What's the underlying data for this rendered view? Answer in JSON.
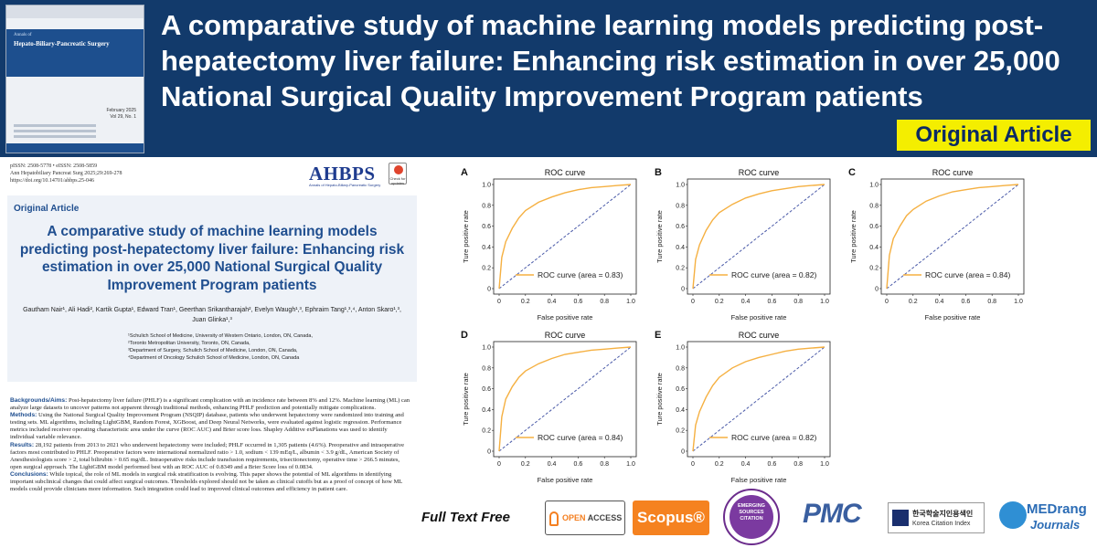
{
  "banner": {
    "title": "A comparative study of machine learning models predicting post-hepatectomy liver failure: Enhancing risk estimation in over 25,000 National Surgical Quality Improvement Program patients",
    "badge": "Original Article"
  },
  "cover": {
    "series": "Annals of",
    "journal": "Hepato-Biliary-Pancreatic Surgery",
    "date": "February 2025",
    "volume": "Vol 29, No. 1"
  },
  "paper": {
    "meta_lines": [
      "pISSN: 2508-5778 • eISSN: 2508-5859",
      "Ann Hepatobiliary Pancreat Surg 2025;29:269-278",
      "https://doi.org/10.14701/ahbps.25-046"
    ],
    "logo": "AHBPS",
    "logo_sub": "Annals of Hepato-Biliary-Pancreatic Surgery",
    "check_badge": "Check for updates",
    "article_type": "Original Article",
    "title": "A comparative study of machine learning models predicting post-hepatectomy liver failure: Enhancing risk estimation in over 25,000 National Surgical Quality Improvement Program patients",
    "authors": "Gautham Nair¹, Ali Hadi², Kartik Gupta¹, Edward Tran¹, Geerthan Srikantharajah², Evelyn Waugh¹,³, Ephraim Tang¹,³,⁴, Anton Skaro¹,³, Juan Glinka¹,³",
    "affiliations": [
      "¹Schulich School of Medicine, University of Western Ontario, London, ON, Canada,",
      "²Toronto Metropolitan University, Toronto, ON, Canada,",
      "³Department of Surgery, Schulich School of Medicine, London, ON, Canada,",
      "⁴Department of Oncology Schulich School of Medicine, London, ON, Canada"
    ],
    "abstract": {
      "bg_head": "Backgrounds/Aims:",
      "bg_text": " Post-hepatectomy liver failure (PHLF) is a significant complication with an incidence rate between 8% and 12%. Machine learning (ML) can analyze large datasets to uncover patterns not apparent through traditional methods, enhancing PHLF prediction and potentially mitigate complications.",
      "methods_head": "Methods:",
      "methods_text": " Using the National Surgical Quality Improvement Program (NSQIP) database, patients who underwent hepatectomy were randomized into training and testing sets. ML algorithms, including LightGBM, Random Forest, XGBoost, and Deep Neural Networks, were evaluated against logistic regression. Performance metrics included receiver operating characteristic area under the curve (ROC AUC) and Brier score loss. Shapley Additive exPlanations was used to identify individual variable relevance.",
      "results_head": "Results:",
      "results_text": " 28,192 patients from 2013 to 2021 who underwent hepatectomy were included; PHLF occurred in 1,305 patients (4.6%). Preoperative and intraoperative factors most contributed to PHLF. Preoperative factors were international normalized ratio > 1.0, sodium < 139 mEq/L, albumin < 3.9 g/dL, American Society of Anesthesiologists score > 2, total bilirubin > 0.65 mg/dL. Intraoperative risks include transfusion requirements, trisectionectomy, operative time > 266.5 minutes, open surgical approach. The LightGBM model performed best with an ROC AUC of 0.8349 and a Brier Score loss of 0.0834.",
      "conclusions_head": "Conclusions:",
      "conclusions_text": " While topical, the role of ML models in surgical risk stratification is evolving. This paper shows the potential of ML algorithms in identifying important subclinical changes that could affect surgical outcomes. Thresholds explored should not be taken as clinical cutoffs but as a proof of concept of how ML models could provide clinicians more information. Such integration could lead to improved clinical outcomes and efficiency in patient care."
    }
  },
  "chart_data": [
    {
      "type": "line",
      "panel": "A",
      "title": "ROC curve",
      "xlabel": "False positive rate",
      "ylabel": "Ture positive rate",
      "xlim": [
        0,
        1
      ],
      "ylim": [
        0,
        1
      ],
      "ticks": [
        "0",
        "0.2",
        "0.4",
        "0.6",
        "0.8",
        "1.0"
      ],
      "legend": "ROC curve (area = 0.83)",
      "legend_position": "bottom-right",
      "series": [
        {
          "name": "ROC curve (area = 0.83)",
          "x": [
            0,
            0.02,
            0.05,
            0.1,
            0.15,
            0.2,
            0.3,
            0.4,
            0.5,
            0.6,
            0.7,
            0.8,
            0.9,
            1.0
          ],
          "y": [
            0,
            0.3,
            0.45,
            0.58,
            0.68,
            0.75,
            0.83,
            0.88,
            0.92,
            0.95,
            0.97,
            0.98,
            0.99,
            1.0
          ]
        },
        {
          "name": "",
          "x": [
            0,
            1
          ],
          "y": [
            0,
            1
          ]
        }
      ]
    },
    {
      "type": "line",
      "panel": "B",
      "title": "ROC curve",
      "xlabel": "False positive rate",
      "ylabel": "Ture positive rate",
      "xlim": [
        0,
        1
      ],
      "ylim": [
        0,
        1
      ],
      "ticks": [
        "0",
        "0.2",
        "0.4",
        "0.6",
        "0.8",
        "1.0"
      ],
      "legend": "ROC curve (area = 0.82)",
      "legend_position": "bottom-right",
      "series": [
        {
          "name": "ROC curve (area = 0.82)",
          "x": [
            0,
            0.02,
            0.05,
            0.1,
            0.15,
            0.2,
            0.3,
            0.4,
            0.5,
            0.6,
            0.7,
            0.8,
            0.9,
            1.0
          ],
          "y": [
            0,
            0.28,
            0.42,
            0.56,
            0.66,
            0.73,
            0.81,
            0.87,
            0.91,
            0.94,
            0.96,
            0.98,
            0.99,
            1.0
          ]
        },
        {
          "name": "",
          "x": [
            0,
            1
          ],
          "y": [
            0,
            1
          ]
        }
      ]
    },
    {
      "type": "line",
      "panel": "C",
      "title": "ROC curve",
      "xlabel": "False positive rate",
      "ylabel": "Ture positive rate",
      "xlim": [
        0,
        1
      ],
      "ylim": [
        0,
        1
      ],
      "ticks": [
        "0",
        "0.2",
        "0.4",
        "0.6",
        "0.8",
        "1.0"
      ],
      "legend": "ROC curve (area = 0.84)",
      "legend_position": "bottom-right",
      "series": [
        {
          "name": "ROC curve (area = 0.84)",
          "x": [
            0,
            0.02,
            0.05,
            0.1,
            0.15,
            0.2,
            0.3,
            0.4,
            0.5,
            0.6,
            0.7,
            0.8,
            0.9,
            1.0
          ],
          "y": [
            0,
            0.32,
            0.48,
            0.6,
            0.7,
            0.76,
            0.84,
            0.89,
            0.93,
            0.95,
            0.97,
            0.98,
            0.99,
            1.0
          ]
        },
        {
          "name": "",
          "x": [
            0,
            1
          ],
          "y": [
            0,
            1
          ]
        }
      ]
    },
    {
      "type": "line",
      "panel": "D",
      "title": "ROC curve",
      "xlabel": "False positive rate",
      "ylabel": "Ture positive rate",
      "xlim": [
        0,
        1
      ],
      "ylim": [
        0,
        1
      ],
      "ticks": [
        "0",
        "0.2",
        "0.4",
        "0.6",
        "0.8",
        "1.0"
      ],
      "legend": "ROC curve (area = 0.84)",
      "legend_position": "bottom-right",
      "series": [
        {
          "name": "ROC curve (area = 0.84)",
          "x": [
            0,
            0.02,
            0.05,
            0.1,
            0.15,
            0.2,
            0.3,
            0.4,
            0.5,
            0.6,
            0.7,
            0.8,
            0.9,
            1.0
          ],
          "y": [
            0,
            0.33,
            0.5,
            0.62,
            0.71,
            0.77,
            0.84,
            0.89,
            0.93,
            0.95,
            0.97,
            0.98,
            0.99,
            1.0
          ]
        },
        {
          "name": "",
          "x": [
            0,
            1
          ],
          "y": [
            0,
            1
          ]
        }
      ]
    },
    {
      "type": "line",
      "panel": "E",
      "title": "ROC curve",
      "xlabel": "False positive rate",
      "ylabel": "Ture positive rate",
      "xlim": [
        0,
        1
      ],
      "ylim": [
        0,
        1
      ],
      "ticks": [
        "0",
        "0.2",
        "0.4",
        "0.6",
        "0.8",
        "1.0"
      ],
      "legend": "ROC curve (area = 0.82)",
      "legend_position": "bottom-right",
      "series": [
        {
          "name": "ROC curve (area = 0.82)",
          "x": [
            0,
            0.02,
            0.05,
            0.1,
            0.15,
            0.2,
            0.3,
            0.4,
            0.5,
            0.6,
            0.7,
            0.8,
            0.9,
            1.0
          ],
          "y": [
            0,
            0.25,
            0.38,
            0.52,
            0.63,
            0.71,
            0.8,
            0.86,
            0.9,
            0.93,
            0.96,
            0.98,
            0.99,
            1.0
          ]
        },
        {
          "name": "",
          "x": [
            0,
            1
          ],
          "y": [
            0,
            1
          ]
        }
      ]
    }
  ],
  "colors": {
    "roc_curve": "#f5b041",
    "diagonal": "#4a5aa8",
    "banner": "#123a6b",
    "badge": "#f4ee00"
  },
  "footer": {
    "full_text": "Full Text Free",
    "open_access": "OPEN",
    "open_access_2": "ACCESS",
    "scopus": "Scopus®",
    "esci": "EMERGING SOURCES CITATION",
    "pmc": "PMC",
    "kci_korean": "한국학술지인용색인",
    "kci_english": "Korea Citation Index",
    "medrang_1": "MEDrang",
    "medrang_2": "Journals"
  }
}
